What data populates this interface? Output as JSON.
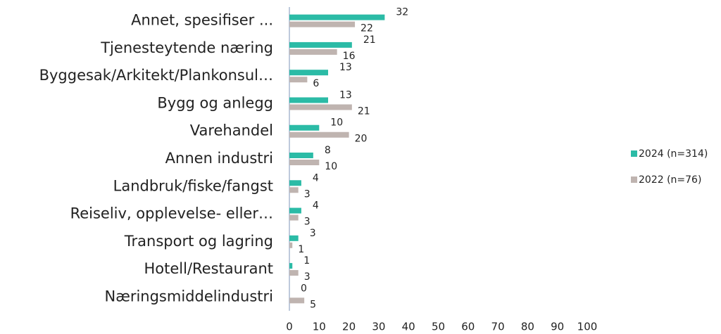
{
  "chart_data": {
    "type": "bar",
    "orientation": "horizontal",
    "categories": [
      "Annet, spesifiser ...",
      "Tjenesteytende næring",
      "Byggesak/Arkitekt/Plankonsul…",
      "Bygg og anlegg",
      "Varehandel",
      "Annen industri",
      "Landbruk/fiske/fangst",
      "Reiseliv, opplevelse- eller…",
      "Transport og lagring",
      "Hotell/Restaurant",
      "Næringsmiddelindustri"
    ],
    "series": [
      {
        "name": "2024 (n=314)",
        "color": "#2bbba6",
        "values": [
          32,
          21,
          13,
          13,
          10,
          8,
          4,
          4,
          3,
          1,
          0
        ]
      },
      {
        "name": "2022 (n=76)",
        "color": "#bfb4b0",
        "values": [
          22,
          16,
          6,
          21,
          20,
          10,
          3,
          3,
          1,
          3,
          5
        ]
      }
    ],
    "xlim": [
      0,
      100
    ],
    "xticks": [
      0,
      10,
      20,
      30,
      40,
      50,
      60,
      70,
      80,
      90,
      100
    ],
    "legend": "right"
  }
}
